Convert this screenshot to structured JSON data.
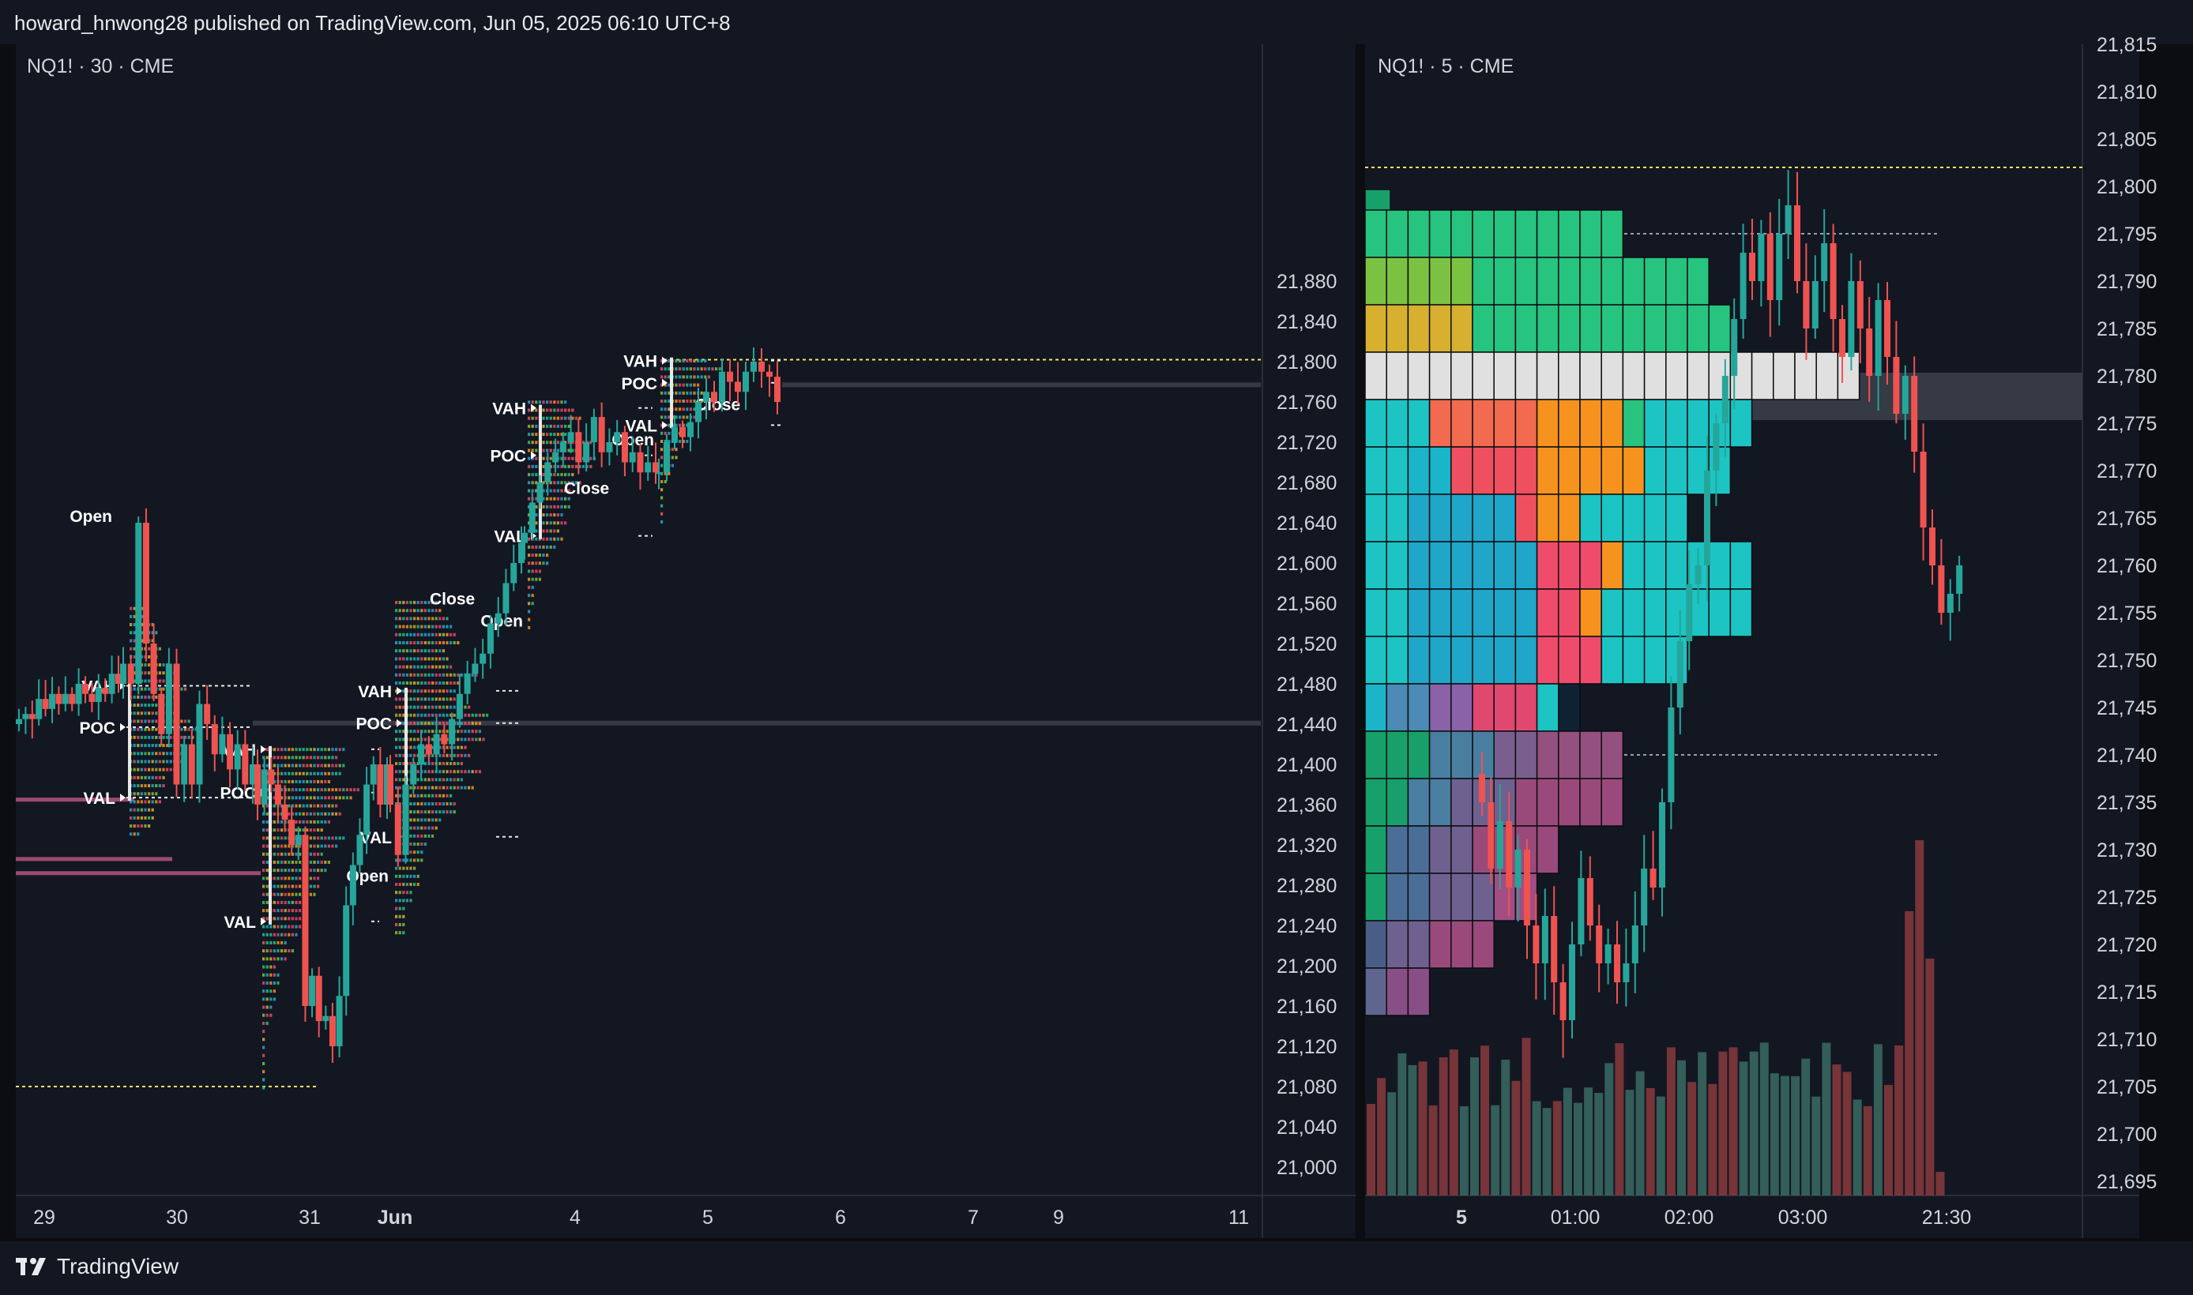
{
  "header": {
    "published_text": "howard_hnwong28 published on TradingView.com, Jun 05, 2025 06:10 UTC+8"
  },
  "footer": {
    "brand": "TradingView"
  },
  "colors": {
    "background": "#131722",
    "bull": "#26a69a",
    "bear": "#ef5350",
    "yellow_line": "#f5e663",
    "text": "#d1d4dc"
  },
  "chart_data": [
    {
      "type": "candlestick",
      "title": "NQ1! · 30 · CME",
      "x_ticks": [
        "29",
        "30",
        "31",
        "Jun",
        "4",
        "5",
        "6",
        "7",
        "9",
        "11"
      ],
      "y_ticks": [
        "21,880",
        "21,840",
        "21,800",
        "21,760",
        "21,720",
        "21,680",
        "21,640",
        "21,600",
        "21,560",
        "21,520",
        "21,480",
        "21,440",
        "21,400",
        "21,360",
        "21,320",
        "21,280",
        "21,240",
        "21,200",
        "21,160",
        "21,120",
        "21,080",
        "21,040",
        "21,000"
      ],
      "y_range": [
        20975,
        21895
      ],
      "hlines": {
        "yellow_top": 21802,
        "yellow_bottom": 21080,
        "current": 21777,
        "poc_extended": 21441
      },
      "sessions": [
        {
          "day": "30",
          "vah": 21478,
          "poc": 21437,
          "val": 21367,
          "open_label": "Open",
          "open_y": 21647
        },
        {
          "day": "31",
          "vah": 21415,
          "poc": 21372,
          "val": 21244,
          "open_label": "Open",
          "close_label": "",
          "close_y": 21390
        },
        {
          "day": "Jun",
          "vah": 21473,
          "poc": 21441,
          "val": 21328,
          "open_label": "Open",
          "open_y": 21290,
          "close_label": "Close",
          "close_y": 21565
        },
        {
          "day": "4",
          "vah": 21754,
          "poc": 21707,
          "val": 21627,
          "open_label": "Open",
          "open_y": 21543,
          "close_label": "Close",
          "close_y": 21675
        },
        {
          "day": "5",
          "vah": 21801,
          "poc": 21779,
          "val": 21737,
          "open_label": "Open",
          "open_y": 21723,
          "close_label": "Close",
          "close_y": 21758
        }
      ],
      "labels": {
        "vah": "VAH",
        "poc": "POC",
        "val": "VAL",
        "open": "Open",
        "close": "Close"
      }
    },
    {
      "type": "candlestick",
      "title": "NQ1! · 5 · CME",
      "x_ticks": [
        "5",
        "01:00",
        "02:00",
        "03:00",
        "21:30"
      ],
      "y_ticks": [
        "21,815",
        "21,810",
        "21,805",
        "21,800",
        "21,795",
        "21,790",
        "21,785",
        "21,780",
        "21,775",
        "21,770",
        "21,765",
        "21,760",
        "21,755",
        "21,750",
        "21,745",
        "21,740",
        "21,735",
        "21,730",
        "21,725",
        "21,720",
        "21,715",
        "21,710",
        "21,705",
        "21,700",
        "21,695"
      ],
      "y_range": [
        21693.5,
        21816.5
      ],
      "hlines": {
        "yellow_top": 21802,
        "vah": 21795,
        "val": 21740
      },
      "poc_price": 21777.5,
      "profile_rows_top_to_bottom": [
        {
          "price": 21795,
          "count": 12,
          "segments": [
            [
              "#26c47e",
              12
            ]
          ]
        },
        {
          "price": 21790,
          "count": 16,
          "segments": [
            [
              "#7cc242",
              5
            ],
            [
              "#26c47e",
              11
            ]
          ]
        },
        {
          "price": 21785,
          "count": 17,
          "segments": [
            [
              "#d7b030",
              5
            ],
            [
              "#26c47e",
              12
            ]
          ]
        },
        {
          "price": 21780,
          "count": 23,
          "segments": [
            [
              "#e0e0e0",
              23
            ]
          ]
        },
        {
          "price": 21775,
          "count": 18,
          "segments": [
            [
              "#1cc4c4",
              3
            ],
            [
              "#f26a4f",
              5
            ],
            [
              "#f5931e",
              4
            ],
            [
              "#26c47e",
              1
            ],
            [
              "#1cc4c4",
              5
            ]
          ]
        },
        {
          "price": 21770,
          "count": 17,
          "segments": [
            [
              "#1cc4c4",
              2
            ],
            [
              "#1ab5c9",
              2
            ],
            [
              "#ef5060",
              4
            ],
            [
              "#f5931e",
              5
            ],
            [
              "#1cc4c4",
              4
            ]
          ]
        },
        {
          "price": 21765,
          "count": 15,
          "segments": [
            [
              "#1cc4c4",
              2
            ],
            [
              "#20a6c8",
              5
            ],
            [
              "#ef5060",
              1
            ],
            [
              "#f5931e",
              2
            ],
            [
              "#1cc4c4",
              5
            ]
          ]
        },
        {
          "price": 21760,
          "count": 18,
          "segments": [
            [
              "#1cc4c4",
              2
            ],
            [
              "#20a6c8",
              6
            ],
            [
              "#ef4b6a",
              3
            ],
            [
              "#f5931e",
              1
            ],
            [
              "#1cc4c4",
              6
            ]
          ]
        },
        {
          "price": 21755,
          "count": 18,
          "segments": [
            [
              "#1cc4c4",
              2
            ],
            [
              "#20a6c8",
              6
            ],
            [
              "#ef4b6a",
              2
            ],
            [
              "#f5931e",
              1
            ],
            [
              "#1cc4c4",
              7
            ]
          ]
        },
        {
          "price": 21750,
          "count": 15,
          "segments": [
            [
              "#1cc4c4",
              2
            ],
            [
              "#20a6c8",
              6
            ],
            [
              "#ef4b6a",
              3
            ],
            [
              "#1cc4c4",
              4
            ]
          ]
        },
        {
          "price": 21745,
          "count": 10,
          "segments": [
            [
              "#1ab5c9",
              1
            ],
            [
              "#4b8bb5",
              2
            ],
            [
              "#8a62a8",
              2
            ],
            [
              "#e04870",
              3
            ],
            [
              "#1cc4c4",
              1
            ],
            [
              "#0e2233",
              1
            ]
          ]
        },
        {
          "price": 21740,
          "count": 12,
          "segments": [
            [
              "#17a06a",
              3
            ],
            [
              "#4a7ea0",
              3
            ],
            [
              "#7a5f8e",
              2
            ],
            [
              "#94507e",
              4
            ]
          ]
        },
        {
          "price": 21735,
          "count": 12,
          "segments": [
            [
              "#17a06a",
              2
            ],
            [
              "#4a7ea0",
              2
            ],
            [
              "#6e6190",
              3
            ],
            [
              "#9a4a7a",
              5
            ]
          ]
        },
        {
          "price": 21730,
          "count": 9,
          "segments": [
            [
              "#17a06a",
              1
            ],
            [
              "#4a6e95",
              2
            ],
            [
              "#6e6190",
              2
            ],
            [
              "#9a4a7a",
              4
            ]
          ]
        },
        {
          "price": 21725,
          "count": 8,
          "segments": [
            [
              "#17a06a",
              1
            ],
            [
              "#4a6e95",
              2
            ],
            [
              "#6e6190",
              3
            ],
            [
              "#a04e84",
              2
            ]
          ]
        },
        {
          "price": 21720,
          "count": 6,
          "segments": [
            [
              "#4a5e85",
              1
            ],
            [
              "#6e6190",
              2
            ],
            [
              "#9a4a7a",
              3
            ]
          ]
        },
        {
          "price": 21715,
          "count": 3,
          "segments": [
            [
              "#5e6690",
              1
            ],
            [
              "#8a4e86",
              2
            ]
          ]
        }
      ],
      "volume_bars": "monochrome teal/red columns along bottom"
    }
  ]
}
